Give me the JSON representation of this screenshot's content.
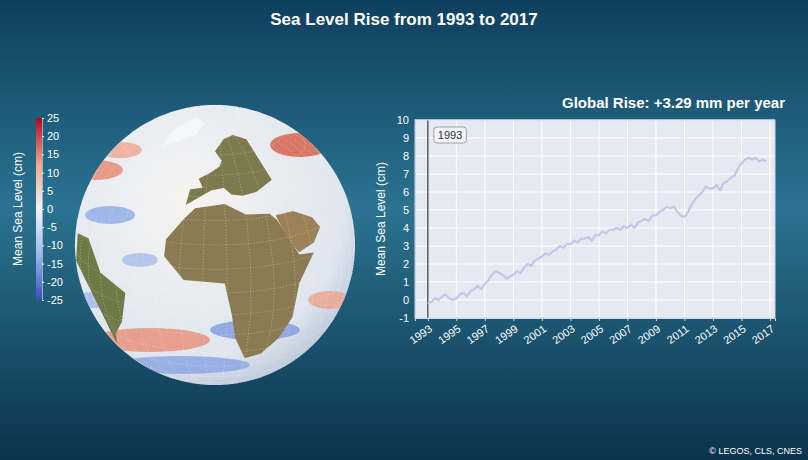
{
  "title": "Sea Level Rise from 1993 to 2017",
  "credit": "© LEGOS, CLS, CNES",
  "chart_data": [
    {
      "type": "map",
      "color_bar": {
        "title": "Mean Sea Level (cm)",
        "range": [
          -25,
          25
        ],
        "ticks": [
          25,
          20,
          15,
          10,
          5,
          0,
          -5,
          -10,
          -15,
          -20,
          -25
        ],
        "colors": [
          "#3b4cc0",
          "#9bb8f2",
          "#f4f4f4",
          "#f2a587",
          "#b40426"
        ]
      }
    },
    {
      "type": "line",
      "title": "Global Rise: +3.29 mm per year",
      "y_label": "Mean Sea Level (cm)",
      "x": [
        1993,
        1993.25,
        1993.5,
        1993.75,
        1994,
        1994.25,
        1994.5,
        1994.75,
        1995,
        1995.25,
        1995.5,
        1995.75,
        1996,
        1996.25,
        1996.5,
        1996.75,
        1997,
        1997.25,
        1997.5,
        1997.75,
        1998,
        1998.25,
        1998.5,
        1998.75,
        1999,
        1999.25,
        1999.5,
        1999.75,
        2000,
        2000.25,
        2000.5,
        2000.75,
        2001,
        2001.25,
        2001.5,
        2001.75,
        2002,
        2002.25,
        2002.5,
        2002.75,
        2003,
        2003.25,
        2003.5,
        2003.75,
        2004,
        2004.25,
        2004.5,
        2004.75,
        2005,
        2005.25,
        2005.5,
        2005.75,
        2006,
        2006.25,
        2006.5,
        2006.75,
        2007,
        2007.25,
        2007.5,
        2007.75,
        2008,
        2008.25,
        2008.5,
        2008.75,
        2009,
        2009.25,
        2009.5,
        2009.75,
        2010,
        2010.25,
        2010.5,
        2010.75,
        2011,
        2011.25,
        2011.5,
        2011.75,
        2012,
        2012.25,
        2012.5,
        2012.75,
        2013,
        2013.25,
        2013.5,
        2013.75,
        2014,
        2014.25,
        2014.5,
        2014.75,
        2015,
        2015.25,
        2015.5,
        2015.75,
        2016,
        2016.25,
        2016.5,
        2016.75
      ],
      "series": [
        {
          "color": "#c6c6ea",
          "values": [
            -0.2,
            -0.1,
            0.1,
            0.0,
            0.2,
            0.3,
            0.1,
            0.0,
            0.1,
            0.3,
            0.4,
            0.2,
            0.5,
            0.6,
            0.8,
            0.6,
            0.9,
            1.1,
            1.4,
            1.6,
            1.5,
            1.4,
            1.2,
            1.3,
            1.4,
            1.6,
            1.5,
            1.8,
            2.0,
            1.9,
            2.2,
            2.3,
            2.4,
            2.6,
            2.5,
            2.7,
            2.8,
            3.0,
            2.9,
            3.1,
            3.1,
            3.3,
            3.2,
            3.4,
            3.4,
            3.5,
            3.3,
            3.6,
            3.6,
            3.8,
            3.7,
            3.9,
            3.9,
            4.0,
            3.9,
            4.1,
            4.0,
            4.2,
            4.0,
            4.3,
            4.4,
            4.5,
            4.4,
            4.7,
            4.7,
            4.9,
            5.0,
            5.2,
            5.1,
            5.2,
            4.9,
            4.7,
            4.6,
            4.9,
            5.3,
            5.6,
            5.8,
            6.0,
            6.3,
            6.2,
            6.2,
            6.4,
            6.1,
            6.5,
            6.6,
            6.8,
            6.9,
            7.3,
            7.6,
            7.8,
            7.9,
            7.8,
            7.9,
            7.7,
            7.8,
            7.7
          ]
        }
      ],
      "xlim": [
        1992.1,
        2017.35
      ],
      "xticks": [
        1993,
        1995,
        1997,
        1999,
        2001,
        2003,
        2005,
        2007,
        2009,
        2011,
        2013,
        2015,
        2017
      ],
      "ylim": [
        -1,
        10
      ],
      "yticks": [
        -1,
        0,
        1,
        2,
        3,
        4,
        5,
        6,
        7,
        8,
        9,
        10
      ],
      "grid": true,
      "annotations": [
        {
          "text": "1993",
          "x": 1993
        }
      ]
    }
  ]
}
